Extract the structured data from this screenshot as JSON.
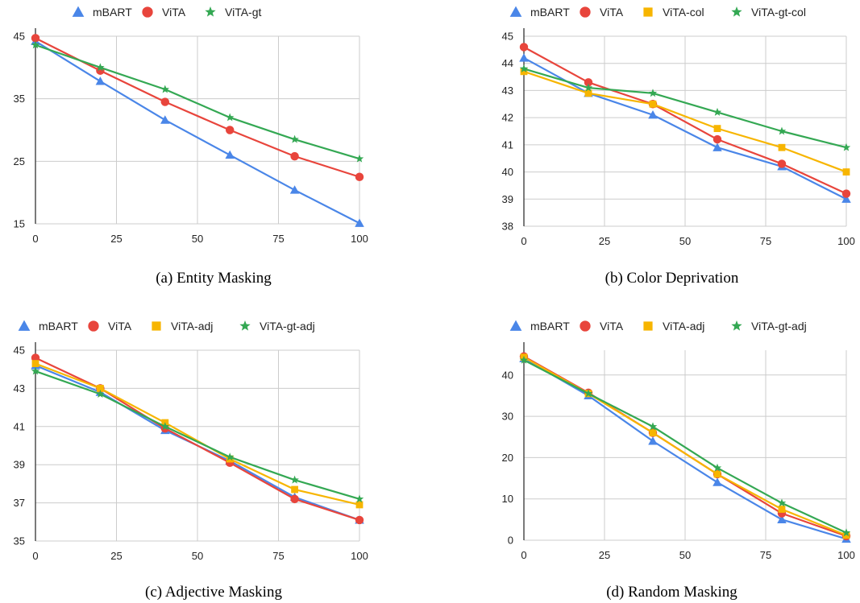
{
  "colors": {
    "mBART": "#4a86e8",
    "ViTA": "#e8453c",
    "ViTA-adj": "#f7b500",
    "ViTA-col": "#f7b500",
    "ViTA-gt": "#34a853",
    "ViTA-gt-col": "#34a853",
    "ViTA-gt-adj": "#34a853",
    "grid": "#cccccc",
    "axis": "#333333"
  },
  "chart_data": [
    {
      "type": "line",
      "caption": "(a) Entity Masking",
      "x": [
        0,
        20,
        40,
        60,
        80,
        100
      ],
      "xticks": [
        0,
        25,
        50,
        75,
        100
      ],
      "yticks": [
        15,
        25,
        35,
        45
      ],
      "xlim": [
        0,
        100
      ],
      "ylim": [
        15,
        45
      ],
      "grid": true,
      "legend_position": "top",
      "series": [
        {
          "name": "mBART",
          "marker": "triangle",
          "values": [
            44.2,
            37.8,
            31.6,
            26.0,
            20.4,
            15.1
          ]
        },
        {
          "name": "ViTA",
          "marker": "circle",
          "values": [
            44.7,
            39.5,
            34.5,
            30.0,
            25.8,
            22.5
          ]
        },
        {
          "name": "ViTA-gt",
          "marker": "star",
          "values": [
            43.6,
            40.0,
            36.5,
            32.0,
            28.5,
            25.4
          ]
        }
      ]
    },
    {
      "type": "line",
      "caption": "(b) Color Deprivation",
      "x": [
        0,
        20,
        40,
        60,
        80,
        100
      ],
      "xticks": [
        0,
        25,
        50,
        75,
        100
      ],
      "yticks": [
        38,
        39,
        40,
        41,
        42,
        43,
        44,
        45
      ],
      "xlim": [
        0,
        100
      ],
      "ylim": [
        38,
        45
      ],
      "grid": true,
      "legend_position": "top",
      "series": [
        {
          "name": "mBART",
          "marker": "triangle",
          "values": [
            44.2,
            42.9,
            42.1,
            40.9,
            40.2,
            39.0
          ]
        },
        {
          "name": "ViTA",
          "marker": "circle",
          "values": [
            44.6,
            43.3,
            42.5,
            41.2,
            40.3,
            39.2
          ]
        },
        {
          "name": "ViTA-col",
          "marker": "square",
          "values": [
            43.7,
            42.9,
            42.5,
            41.6,
            40.9,
            40.0
          ]
        },
        {
          "name": "ViTA-gt-col",
          "marker": "star",
          "values": [
            43.8,
            43.1,
            42.9,
            42.2,
            41.5,
            40.9
          ]
        }
      ]
    },
    {
      "type": "line",
      "caption": "(c) Adjective Masking",
      "x": [
        0,
        20,
        40,
        60,
        80,
        100
      ],
      "xticks": [
        0,
        25,
        50,
        75,
        100
      ],
      "yticks": [
        35,
        37,
        39,
        41,
        43,
        45
      ],
      "xlim": [
        0,
        100
      ],
      "ylim": [
        35,
        45
      ],
      "grid": true,
      "legend_position": "top",
      "series": [
        {
          "name": "mBART",
          "marker": "triangle",
          "values": [
            44.2,
            42.8,
            40.8,
            39.2,
            37.3,
            36.1
          ]
        },
        {
          "name": "ViTA",
          "marker": "circle",
          "values": [
            44.6,
            43.0,
            40.9,
            39.1,
            37.2,
            36.1
          ]
        },
        {
          "name": "ViTA-adj",
          "marker": "square",
          "values": [
            44.3,
            43.0,
            41.2,
            39.3,
            37.7,
            36.9
          ]
        },
        {
          "name": "ViTA-gt-adj",
          "marker": "star",
          "values": [
            43.9,
            42.7,
            41.0,
            39.4,
            38.2,
            37.2
          ]
        }
      ]
    },
    {
      "type": "line",
      "caption": "(d) Random Masking",
      "x": [
        0,
        20,
        40,
        60,
        80,
        100
      ],
      "xticks": [
        0,
        25,
        50,
        75,
        100
      ],
      "yticks": [
        0,
        10,
        20,
        30,
        40
      ],
      "xlim": [
        0,
        100
      ],
      "ylim": [
        0,
        46
      ],
      "grid": true,
      "legend_position": "top",
      "series": [
        {
          "name": "mBART",
          "marker": "triangle",
          "values": [
            44.0,
            35.0,
            24.0,
            14.0,
            5.0,
            0.3
          ]
        },
        {
          "name": "ViTA",
          "marker": "circle",
          "values": [
            44.5,
            35.7,
            26.0,
            16.0,
            6.5,
            1.0
          ]
        },
        {
          "name": "ViTA-adj",
          "marker": "square",
          "values": [
            44.3,
            35.5,
            26.0,
            16.0,
            7.5,
            1.2
          ]
        },
        {
          "name": "ViTA-gt-adj",
          "marker": "star",
          "values": [
            43.6,
            35.5,
            27.5,
            17.5,
            9.0,
            1.8
          ]
        }
      ]
    }
  ]
}
